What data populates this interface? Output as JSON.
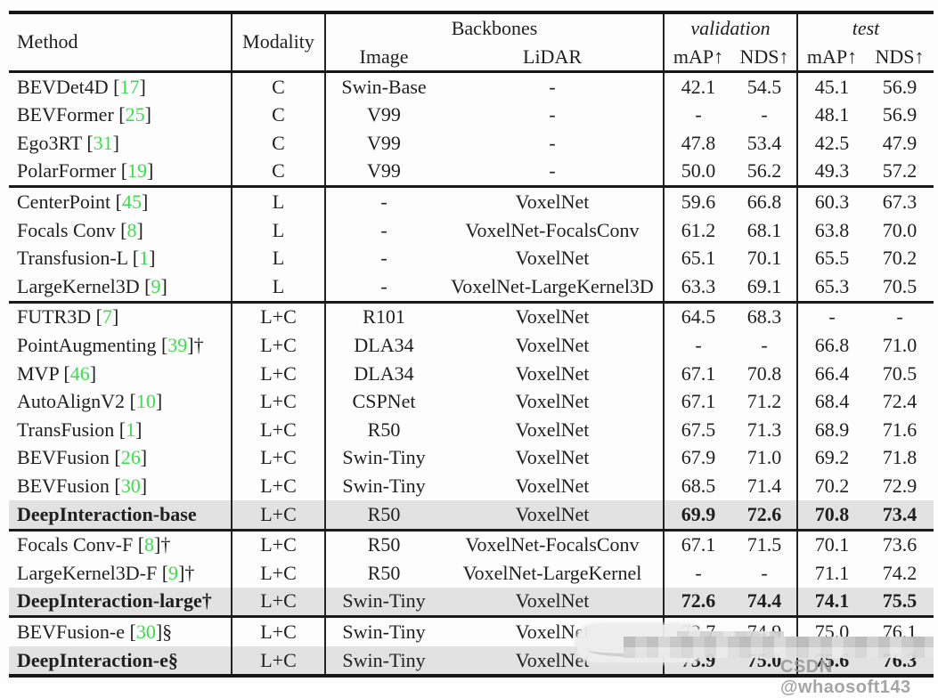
{
  "colors": {
    "citation_green": "#3ade4b",
    "highlight_row_bg": "#e2e2e2",
    "rule_black": "#161616",
    "text": "#1f1f1f",
    "watermark_gray": "#949494"
  },
  "table": {
    "header": {
      "method": "Method",
      "modality": "Modality",
      "backbones": "Backbones",
      "image": "Image",
      "lidar": "LiDAR",
      "validation": "validation",
      "test": "test",
      "map": "mAP↑",
      "nds": "NDS↑"
    },
    "rows": [
      {
        "method": "BEVDet4D",
        "ref": "17",
        "suffix": "",
        "modality": "C",
        "image_backbone": "Swin-Base",
        "lidar_backbone": "-",
        "val_map": "42.1",
        "val_nds": "54.5",
        "test_map": "45.1",
        "test_nds": "56.9",
        "group": 0,
        "highlight": false
      },
      {
        "method": "BEVFormer",
        "ref": "25",
        "suffix": "",
        "modality": "C",
        "image_backbone": "V99",
        "lidar_backbone": "-",
        "val_map": "-",
        "val_nds": "-",
        "test_map": "48.1",
        "test_nds": "56.9",
        "group": 0,
        "highlight": false
      },
      {
        "method": "Ego3RT",
        "ref": "31",
        "suffix": "",
        "modality": "C",
        "image_backbone": "V99",
        "lidar_backbone": "-",
        "val_map": "47.8",
        "val_nds": "53.4",
        "test_map": "42.5",
        "test_nds": "47.9",
        "group": 0,
        "highlight": false
      },
      {
        "method": "PolarFormer",
        "ref": "19",
        "suffix": "",
        "modality": "C",
        "image_backbone": "V99",
        "lidar_backbone": "-",
        "val_map": "50.0",
        "val_nds": "56.2",
        "test_map": "49.3",
        "test_nds": "57.2",
        "group": 0,
        "highlight": false
      },
      {
        "method": "CenterPoint",
        "ref": "45",
        "suffix": "",
        "modality": "L",
        "image_backbone": "-",
        "lidar_backbone": "VoxelNet",
        "val_map": "59.6",
        "val_nds": "66.8",
        "test_map": "60.3",
        "test_nds": "67.3",
        "group": 1,
        "highlight": false
      },
      {
        "method": "Focals Conv",
        "ref": "8",
        "suffix": "",
        "modality": "L",
        "image_backbone": "-",
        "lidar_backbone": "VoxelNet-FocalsConv",
        "val_map": "61.2",
        "val_nds": "68.1",
        "test_map": "63.8",
        "test_nds": "70.0",
        "group": 1,
        "highlight": false
      },
      {
        "method": "Transfusion-L",
        "ref": "1",
        "suffix": "",
        "modality": "L",
        "image_backbone": "-",
        "lidar_backbone": "VoxelNet",
        "val_map": "65.1",
        "val_nds": "70.1",
        "test_map": "65.5",
        "test_nds": "70.2",
        "group": 1,
        "highlight": false
      },
      {
        "method": "LargeKernel3D",
        "ref": "9",
        "suffix": "",
        "modality": "L",
        "image_backbone": "-",
        "lidar_backbone": "VoxelNet-LargeKernel3D",
        "val_map": "63.3",
        "val_nds": "69.1",
        "test_map": "65.3",
        "test_nds": "70.5",
        "group": 1,
        "highlight": false
      },
      {
        "method": "FUTR3D",
        "ref": "7",
        "suffix": "",
        "modality": "L+C",
        "image_backbone": "R101",
        "lidar_backbone": "VoxelNet",
        "val_map": "64.5",
        "val_nds": "68.3",
        "test_map": "-",
        "test_nds": "-",
        "group": 2,
        "highlight": false
      },
      {
        "method": "PointAugmenting",
        "ref": "39",
        "suffix": "†",
        "modality": "L+C",
        "image_backbone": "DLA34",
        "lidar_backbone": "VoxelNet",
        "val_map": "-",
        "val_nds": "-",
        "test_map": "66.8",
        "test_nds": "71.0",
        "group": 2,
        "highlight": false
      },
      {
        "method": "MVP",
        "ref": "46",
        "suffix": "",
        "modality": "L+C",
        "image_backbone": "DLA34",
        "lidar_backbone": "VoxelNet",
        "val_map": "67.1",
        "val_nds": "70.8",
        "test_map": "66.4",
        "test_nds": "70.5",
        "group": 2,
        "highlight": false
      },
      {
        "method": "AutoAlignV2",
        "ref": "10",
        "suffix": "",
        "modality": "L+C",
        "image_backbone": "CSPNet",
        "lidar_backbone": "VoxelNet",
        "val_map": "67.1",
        "val_nds": "71.2",
        "test_map": "68.4",
        "test_nds": "72.4",
        "group": 2,
        "highlight": false
      },
      {
        "method": "TransFusion",
        "ref": "1",
        "suffix": "",
        "modality": "L+C",
        "image_backbone": "R50",
        "lidar_backbone": "VoxelNet",
        "val_map": "67.5",
        "val_nds": "71.3",
        "test_map": "68.9",
        "test_nds": "71.6",
        "group": 2,
        "highlight": false
      },
      {
        "method": "BEVFusion",
        "ref": "26",
        "suffix": "",
        "modality": "L+C",
        "image_backbone": "Swin-Tiny",
        "lidar_backbone": "VoxelNet",
        "val_map": "67.9",
        "val_nds": "71.0",
        "test_map": "69.2",
        "test_nds": "71.8",
        "group": 2,
        "highlight": false
      },
      {
        "method": "BEVFusion",
        "ref": "30",
        "suffix": "",
        "modality": "L+C",
        "image_backbone": "Swin-Tiny",
        "lidar_backbone": "VoxelNet",
        "val_map": "68.5",
        "val_nds": "71.4",
        "test_map": "70.2",
        "test_nds": "72.9",
        "group": 2,
        "highlight": false
      },
      {
        "method": "DeepInteraction-base",
        "ref": "",
        "suffix": "",
        "modality": "L+C",
        "image_backbone": "R50",
        "lidar_backbone": "VoxelNet",
        "val_map": "69.9",
        "val_nds": "72.6",
        "test_map": "70.8",
        "test_nds": "73.4",
        "group": 2,
        "highlight": true
      },
      {
        "method": "Focals Conv-F",
        "ref": "8",
        "suffix": "†",
        "modality": "L+C",
        "image_backbone": "R50",
        "lidar_backbone": "VoxelNet-FocalsConv",
        "val_map": "67.1",
        "val_nds": "71.5",
        "test_map": "70.1",
        "test_nds": "73.6",
        "group": 3,
        "highlight": false
      },
      {
        "method": "LargeKernel3D-F",
        "ref": "9",
        "suffix": "†",
        "modality": "L+C",
        "image_backbone": "R50",
        "lidar_backbone": "VoxelNet-LargeKernel",
        "val_map": "-",
        "val_nds": "-",
        "test_map": "71.1",
        "test_nds": "74.2",
        "group": 3,
        "highlight": false
      },
      {
        "method": "DeepInteraction-large",
        "ref": "",
        "suffix": "†",
        "modality": "L+C",
        "image_backbone": "Swin-Tiny",
        "lidar_backbone": "VoxelNet",
        "val_map": "72.6",
        "val_nds": "74.4",
        "test_map": "74.1",
        "test_nds": "75.5",
        "group": 3,
        "highlight": true
      },
      {
        "method": "BEVFusion-e",
        "ref": "30",
        "suffix": "§",
        "modality": "L+C",
        "image_backbone": "Swin-Tiny",
        "lidar_backbone": "VoxelNet",
        "val_map": "73.7",
        "val_nds": "74.9",
        "test_map": "75.0",
        "test_nds": "76.1",
        "group": 4,
        "highlight": false
      },
      {
        "method": "DeepInteraction-e",
        "ref": "",
        "suffix": "§",
        "modality": "L+C",
        "image_backbone": "Swin-Tiny",
        "lidar_backbone": "VoxelNet",
        "val_map": "73.9",
        "val_nds": "75.0",
        "test_map": "75.6",
        "test_nds": "76.3",
        "group": 4,
        "highlight": true
      }
    ]
  },
  "watermark": {
    "text": "CSDN @whaosoft143"
  }
}
